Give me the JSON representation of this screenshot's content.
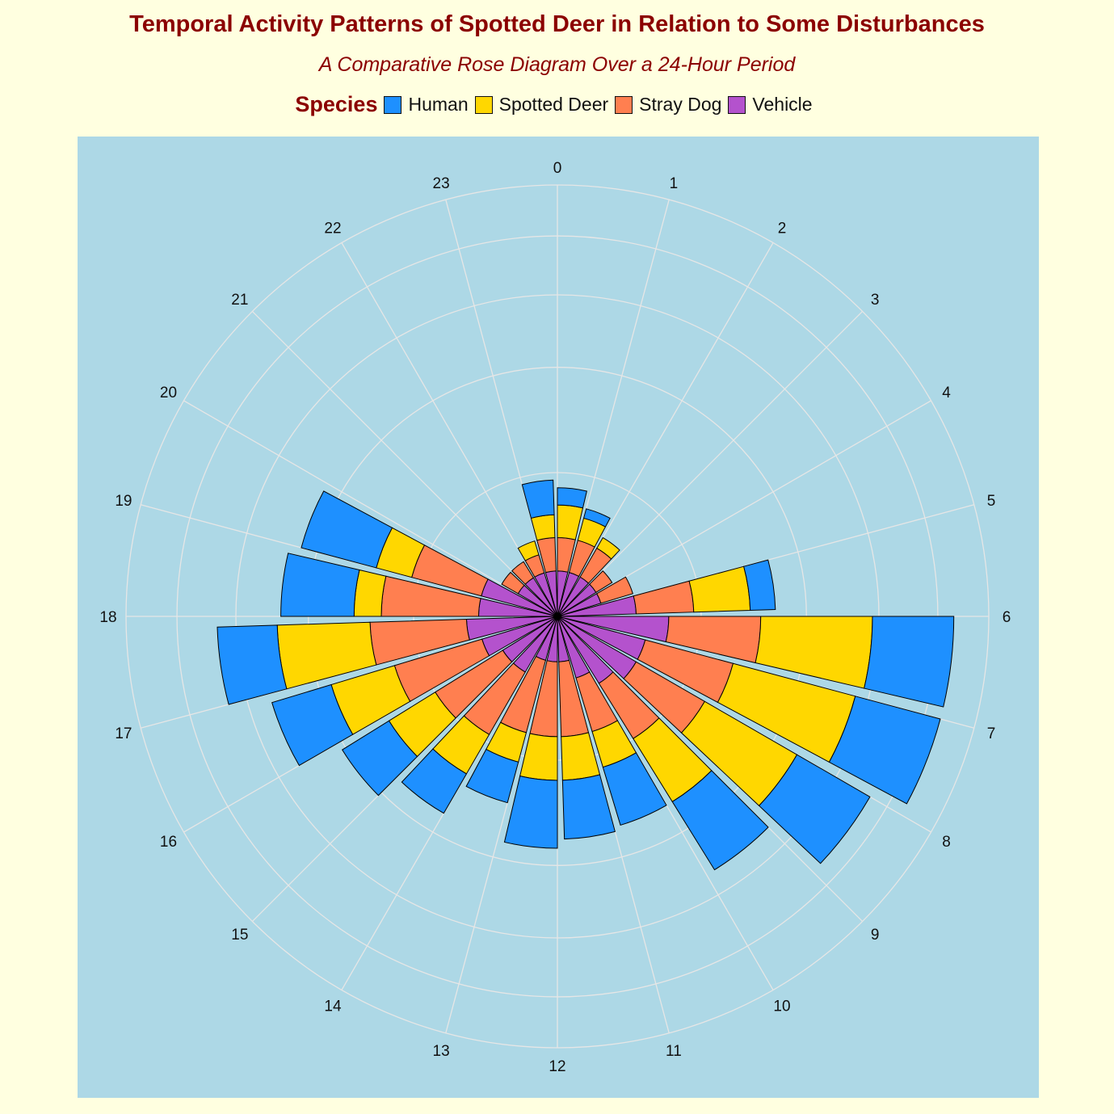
{
  "chart_data": {
    "type": "rose",
    "title": "Temporal Activity Patterns of Spotted Deer in Relation to Some Disturbances",
    "subtitle": "A Comparative Rose Diagram Over a 24-Hour Period",
    "legend_title": "Species",
    "legend_position": "top",
    "stacked": true,
    "categories": [
      "0",
      "1",
      "2",
      "3",
      "4",
      "5",
      "6",
      "7",
      "8",
      "9",
      "10",
      "11",
      "12",
      "13",
      "14",
      "15",
      "16",
      "17",
      "18",
      "19",
      "20",
      "21",
      "22",
      "23"
    ],
    "series": [
      {
        "name": "Vehicle",
        "color": "#b452cd",
        "values": [
          1,
          1,
          1,
          1,
          1,
          3,
          6,
          4,
          4,
          3,
          2,
          1,
          1,
          1,
          2,
          2,
          3,
          4,
          3,
          3,
          1,
          1,
          1,
          1
        ]
      },
      {
        "name": "Stray Dog",
        "color": "#ff7f50",
        "values": [
          2,
          2,
          2,
          1,
          2,
          6,
          14,
          12,
          10,
          7,
          5,
          6,
          6,
          6,
          7,
          8,
          11,
          13,
          12,
          8,
          1,
          1,
          1,
          2
        ]
      },
      {
        "name": "Spotted Deer",
        "color": "#ffd700",
        "values": [
          3,
          2,
          1,
          0,
          0,
          9,
          28,
          30,
          23,
          13,
          5,
          6,
          6,
          4,
          7,
          9,
          13,
          21,
          5,
          6,
          0,
          0,
          1,
          2
        ]
      },
      {
        "name": "Human",
        "color": "#1e90ff",
        "values": [
          2,
          1,
          0,
          0,
          0,
          5,
          28,
          30,
          26,
          20,
          11,
          11,
          13,
          7,
          9,
          12,
          16,
          18,
          17,
          17,
          0,
          0,
          0,
          4
        ]
      }
    ],
    "legend_order": [
      "Human",
      "Spotted Deer",
      "Stray Dog",
      "Vehicle"
    ],
    "radial_max": 90,
    "grid": true
  }
}
